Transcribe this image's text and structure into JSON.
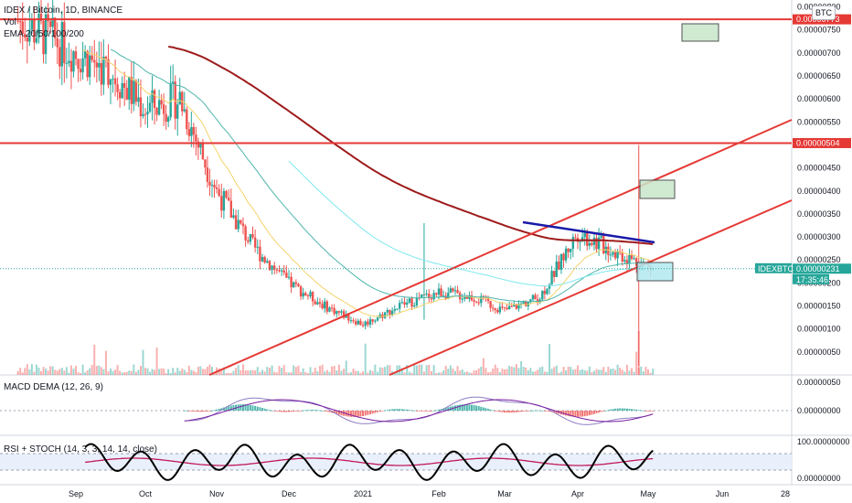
{
  "header": {
    "symbol": "IDEX / Bitcoin, 1D, BINANCE",
    "vol": "Vol",
    "ema": "EMA 20/50/100/200",
    "currency": "BTC"
  },
  "price_axis": {
    "ticks": [
      "0.00000800",
      "0.00000750",
      "0.00000700",
      "0.00000650",
      "0.00000600",
      "0.00000550",
      "0.00000500",
      "0.00000450",
      "0.00000400",
      "0.00000350",
      "0.00000300",
      "0.00000250",
      "0.00000200",
      "0.00000150",
      "0.00000100",
      "0.00000050"
    ],
    "resistance_high": "0.00000773",
    "resistance_mid": "0.00000504",
    "current_symbol": "IDEXBTC",
    "current_price": "0.00000231",
    "countdown": "17:35:46"
  },
  "macd": {
    "label": "MACD DEMA (12, 26, 9)",
    "ticks": [
      "0.00000050",
      "0.00000000"
    ]
  },
  "rsi": {
    "label": "RSI + STOCH (14, 3, 3, 14, 14, close)",
    "ticks": [
      "100.00000000",
      "0.00000000"
    ]
  },
  "date_axis": [
    "Sep",
    "Oct",
    "Nov",
    "Dec",
    "2021",
    "Feb",
    "Mar",
    "Apr",
    "May",
    "Jun",
    "28"
  ],
  "colors": {
    "up": "#26a69a",
    "down": "#ef5350",
    "ema20": "#f5d36b",
    "ema50": "#7ee8ee",
    "ema200": "#9e1b1b",
    "resistance": "#e53935",
    "channel": "#e53935",
    "trend": "#1a1aa8",
    "rsi": "#000000",
    "stoch": "#c2185b",
    "macd": "#8e7cc3",
    "signal": "#7b1fa2"
  },
  "chart_data": {
    "type": "candlestick",
    "price_range": [
      0.0,
      8.15e-06
    ],
    "x_labels": [
      "Sep",
      "Oct",
      "Nov",
      "Dec",
      "2021",
      "Feb",
      "Mar",
      "Apr",
      "May",
      "Jun",
      "28"
    ],
    "resistance_levels": [
      7.73e-06,
      5.04e-06
    ],
    "last_price": 2.31e-06,
    "close_path": [
      {
        "x": "Sep",
        "y": 7.7e-06
      },
      {
        "x": "mid-Sep",
        "y": 6.6e-06
      },
      {
        "x": "Oct",
        "y": 5.8e-06
      },
      {
        "x": "mid-Oct",
        "y": 6e-06
      },
      {
        "x": "Nov",
        "y": 4e-06
      },
      {
        "x": "mid-Nov",
        "y": 2.8e-06
      },
      {
        "x": "Dec",
        "y": 2e-06
      },
      {
        "x": "mid-Dec",
        "y": 1.5e-06
      },
      {
        "x": "2021",
        "y": 1.1e-06
      },
      {
        "x": "mid-Jan",
        "y": 1.5e-06
      },
      {
        "x": "Feb",
        "y": 1.8e-06
      },
      {
        "x": "mid-Feb",
        "y": 1.7e-06
      },
      {
        "x": "Mar",
        "y": 1.4e-06
      },
      {
        "x": "mid-Mar",
        "y": 1.7e-06
      },
      {
        "x": "Apr",
        "y": 3.1e-06
      },
      {
        "x": "mid-Apr",
        "y": 2.7e-06
      },
      {
        "x": "May",
        "y": 2.3e-06
      }
    ]
  }
}
